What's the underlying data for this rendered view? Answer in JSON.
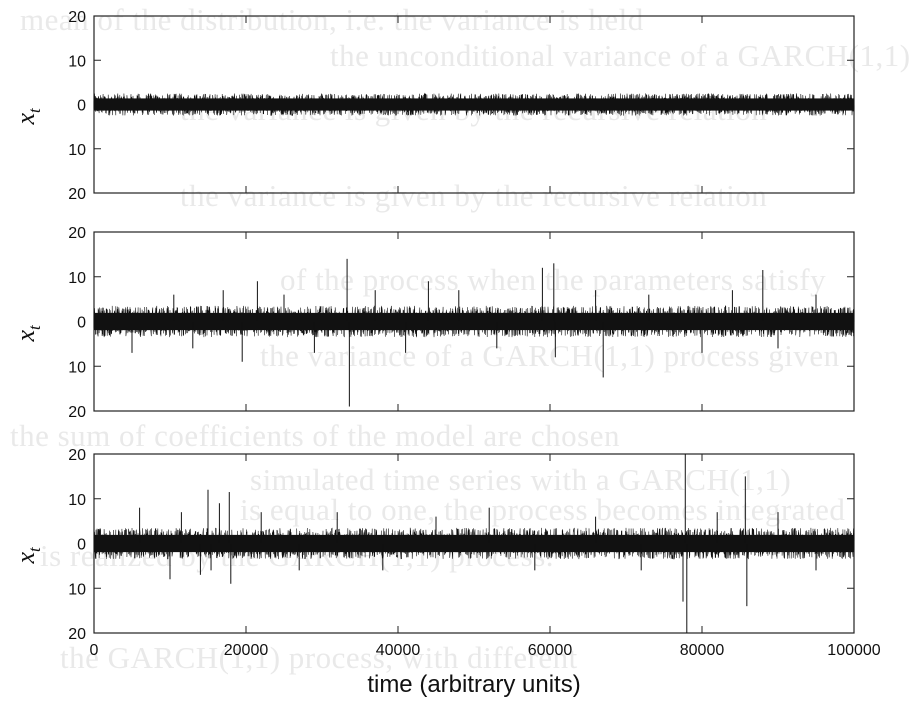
{
  "background_text": {
    "lines": [
      "mean of the distribution, i.e. the variance is held",
      "the unconditional variance of a GARCH(1,1)",
      "the variance is given by the recursive relation",
      "the variance is given by the recursive relation",
      "of the process when the parameters satisfy",
      "the variance of a GARCH(1,1) process given",
      "the sum of coefficients of the model are chosen",
      "simulated time series with a GARCH(1,1)",
      "is equal to one, the process becomes integrated",
      "is realized by the GARCH(1,1) process.",
      "the GARCH(1,1) process, with different"
    ]
  },
  "chart_data": [
    {
      "type": "line",
      "panel": "top",
      "ylabel": "x",
      "ylabel_sub": "t",
      "xlim": [
        0,
        100000
      ],
      "ylim": [
        -20,
        20
      ],
      "yticks": [
        20,
        10,
        0,
        -10,
        -20
      ],
      "ytick_labels": [
        "20",
        "10",
        "0",
        "10",
        "20"
      ],
      "noise_band": [
        -2.5,
        2.5
      ],
      "spikes": []
    },
    {
      "type": "line",
      "panel": "middle",
      "ylabel": "x",
      "ylabel_sub": "t",
      "xlim": [
        0,
        100000
      ],
      "ylim": [
        -20,
        20
      ],
      "yticks": [
        20,
        10,
        0,
        -10,
        -20
      ],
      "ytick_labels": [
        "20",
        "10",
        "0",
        "10",
        "20"
      ],
      "noise_band": [
        -3.5,
        3.5
      ],
      "spikes": [
        {
          "x": 5000,
          "y": -7
        },
        {
          "x": 10500,
          "y": 6
        },
        {
          "x": 13000,
          "y": -6
        },
        {
          "x": 17000,
          "y": 7
        },
        {
          "x": 19500,
          "y": -9
        },
        {
          "x": 21500,
          "y": 9
        },
        {
          "x": 25000,
          "y": 6
        },
        {
          "x": 29000,
          "y": -7
        },
        {
          "x": 33300,
          "y": 14
        },
        {
          "x": 33600,
          "y": -19
        },
        {
          "x": 37000,
          "y": 7
        },
        {
          "x": 41000,
          "y": -7
        },
        {
          "x": 44000,
          "y": 9
        },
        {
          "x": 48000,
          "y": 7
        },
        {
          "x": 53000,
          "y": -6
        },
        {
          "x": 59000,
          "y": 12
        },
        {
          "x": 60500,
          "y": 13
        },
        {
          "x": 60700,
          "y": -8
        },
        {
          "x": 66000,
          "y": 7
        },
        {
          "x": 67000,
          "y": -12.5
        },
        {
          "x": 73000,
          "y": 6
        },
        {
          "x": 80000,
          "y": -7
        },
        {
          "x": 84000,
          "y": 7
        },
        {
          "x": 88000,
          "y": 11.5
        },
        {
          "x": 90000,
          "y": -6
        },
        {
          "x": 95000,
          "y": 6
        }
      ]
    },
    {
      "type": "line",
      "panel": "bottom",
      "ylabel": "x",
      "ylabel_sub": "t",
      "xlabel": "time (arbitrary units)",
      "xlim": [
        0,
        100000
      ],
      "ylim": [
        -20,
        20
      ],
      "yticks": [
        20,
        10,
        0,
        -10,
        -20
      ],
      "ytick_labels": [
        "20",
        "10",
        "0",
        "10",
        "20"
      ],
      "xticks": [
        0,
        20000,
        40000,
        60000,
        80000,
        100000
      ],
      "xtick_labels": [
        "0",
        "20000",
        "40000",
        "60000",
        "80000",
        "100000"
      ],
      "noise_band": [
        -3.5,
        3.5
      ],
      "spikes": [
        {
          "x": 6000,
          "y": 8
        },
        {
          "x": 10000,
          "y": -8
        },
        {
          "x": 11500,
          "y": 7
        },
        {
          "x": 14000,
          "y": -7
        },
        {
          "x": 15000,
          "y": 12
        },
        {
          "x": 15400,
          "y": -6
        },
        {
          "x": 16500,
          "y": 9
        },
        {
          "x": 17800,
          "y": 11.5
        },
        {
          "x": 18000,
          "y": -9
        },
        {
          "x": 22000,
          "y": 7
        },
        {
          "x": 27000,
          "y": -6
        },
        {
          "x": 32000,
          "y": 7
        },
        {
          "x": 38000,
          "y": -6
        },
        {
          "x": 45000,
          "y": 6
        },
        {
          "x": 52000,
          "y": 8
        },
        {
          "x": 58000,
          "y": -6
        },
        {
          "x": 66000,
          "y": 6
        },
        {
          "x": 72000,
          "y": -6
        },
        {
          "x": 77500,
          "y": -13
        },
        {
          "x": 77800,
          "y": 20
        },
        {
          "x": 78000,
          "y": -20
        },
        {
          "x": 82000,
          "y": 7
        },
        {
          "x": 85700,
          "y": 15
        },
        {
          "x": 85900,
          "y": -14
        },
        {
          "x": 90000,
          "y": 7
        },
        {
          "x": 95000,
          "y": -6
        }
      ]
    }
  ]
}
